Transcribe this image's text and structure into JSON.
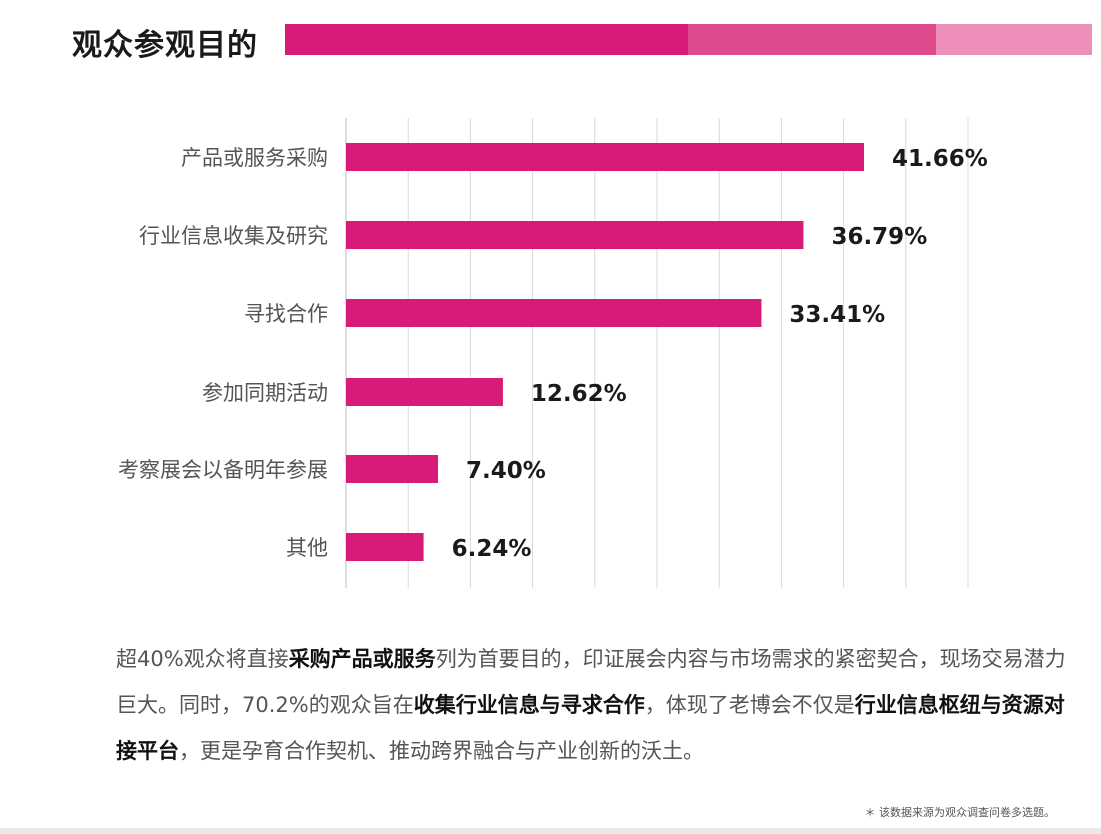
{
  "header": {
    "title": "观众参观目的"
  },
  "colors": {
    "bar": "#d81b79",
    "band_dark": "#d81b79",
    "band_mid": "#df4a8c",
    "band_light": "#ec8dba"
  },
  "chart_data": {
    "type": "bar",
    "orientation": "horizontal",
    "categories": [
      "产品或服务采购",
      "行业信息收集及研究",
      "寻找合作",
      "参加同期活动",
      "考察展会以备明年参展",
      "其他"
    ],
    "values": [
      41.66,
      36.79,
      33.41,
      12.62,
      7.4,
      6.24
    ],
    "value_labels": [
      "41.66%",
      "36.79%",
      "33.41%",
      "12.62%",
      "7.40%",
      "6.24%"
    ],
    "xlim": [
      0,
      45
    ],
    "grid": true,
    "gridlines": 10
  },
  "summary": {
    "line1_a": "超40%观众将直接",
    "line1_b": "采购产品或服务",
    "line1_c": "列为首要目的，印证展会内容与市场需求的紧密契合，现场交易潜力巨大。同时，70.2%的观众旨在",
    "line2_b": "收集行业信息与寻求合作",
    "line2_c": "，体现了老博会不仅是",
    "line3_b": "行业信息枢纽与资源对接平台",
    "line3_c": "，更是孕育合作契机、推动跨界融合与产业创新的沃土。"
  },
  "footnote": "＊ 该数据来源为观众调查问卷多选题。"
}
